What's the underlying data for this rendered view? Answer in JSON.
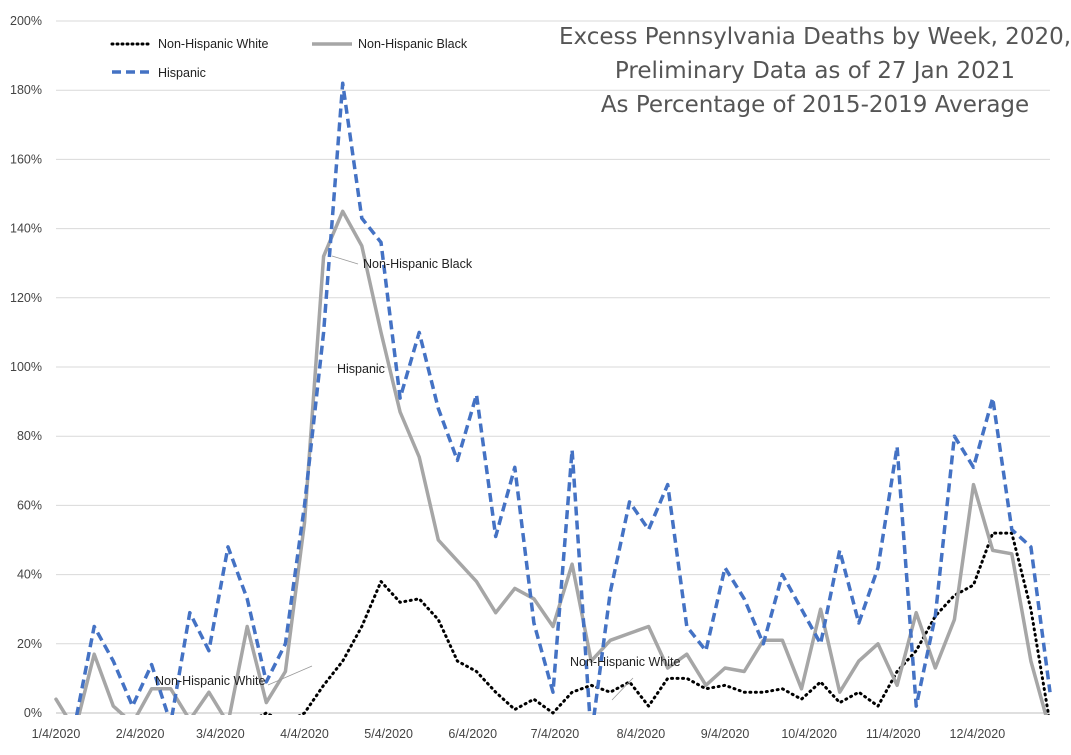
{
  "chart_data": {
    "type": "line",
    "title_lines": [
      "Excess Pennsylvania Deaths by Week, 2020,",
      "Preliminary Data as of 27 Jan 2021",
      "As Percentage of 2015-2019 Average"
    ],
    "xlabel": "",
    "ylabel": "",
    "ylim": [
      0,
      200
    ],
    "y_ticks": [
      "0%",
      "20%",
      "40%",
      "60%",
      "80%",
      "100%",
      "120%",
      "140%",
      "160%",
      "180%",
      "200%"
    ],
    "x_ticks": [
      "1/4/2020",
      "2/4/2020",
      "3/4/2020",
      "4/4/2020",
      "5/4/2020",
      "6/4/2020",
      "7/4/2020",
      "8/4/2020",
      "9/4/2020",
      "10/4/2020",
      "11/4/2020",
      "12/4/2020"
    ],
    "x_tick_week_index": [
      0,
      4.4,
      8.6,
      13,
      17.4,
      21.8,
      26.1,
      30.6,
      35,
      39.4,
      43.8,
      48.2
    ],
    "grid": "horizontal",
    "legend_position": "top-left",
    "series": [
      {
        "name": "Non-Hispanic White",
        "color": "#000000",
        "style": "dotted",
        "values": [
          -5,
          -5,
          -3,
          -3,
          -4,
          -5,
          -6,
          -5,
          -4,
          -4,
          -3,
          0,
          -3,
          0,
          8,
          15,
          25,
          38,
          32,
          33,
          27,
          15,
          12,
          6,
          1,
          4,
          0,
          6,
          8,
          6,
          9,
          2,
          10,
          10,
          7,
          8,
          6,
          6,
          7,
          4,
          9,
          3,
          6,
          2,
          12,
          18,
          28,
          34,
          37,
          52,
          52,
          30,
          -3
        ]
      },
      {
        "name": "Non-Hispanic Black",
        "color": "#a6a6a6",
        "style": "solid",
        "values": [
          4,
          -5,
          17,
          2,
          -3,
          7,
          7,
          -2,
          6,
          -3,
          25,
          3,
          12,
          55,
          132,
          145,
          135,
          110,
          87,
          74,
          50,
          44,
          38,
          29,
          36,
          33,
          25,
          43,
          15,
          21,
          23,
          25,
          13,
          17,
          8,
          13,
          12,
          21,
          21,
          7,
          30,
          6,
          15,
          20,
          8,
          29,
          13,
          27,
          66,
          47,
          46,
          15,
          -5
        ]
      },
      {
        "name": "Hispanic",
        "color": "#4472c4",
        "style": "dashed",
        "values": [
          -5,
          -3,
          25,
          15,
          2,
          14,
          -3,
          29,
          18,
          48,
          33,
          9,
          20,
          60,
          110,
          182,
          143,
          136,
          91,
          110,
          88,
          73,
          92,
          51,
          71,
          26,
          6,
          76,
          -7,
          35,
          61,
          53,
          66,
          25,
          18,
          42,
          33,
          20,
          40,
          30,
          20,
          47,
          26,
          42,
          77,
          2,
          28,
          80,
          71,
          91,
          53,
          48,
          6
        ]
      }
    ],
    "annotations": [
      {
        "text": "Non-Hispanic Black",
        "series": "Non-Hispanic Black"
      },
      {
        "text": "Hispanic",
        "series": "Hispanic"
      },
      {
        "text": "Non-Hispanic White",
        "series": "Non-Hispanic White"
      },
      {
        "text": "Non-Hispanic White",
        "series": "Non-Hispanic White"
      }
    ]
  }
}
